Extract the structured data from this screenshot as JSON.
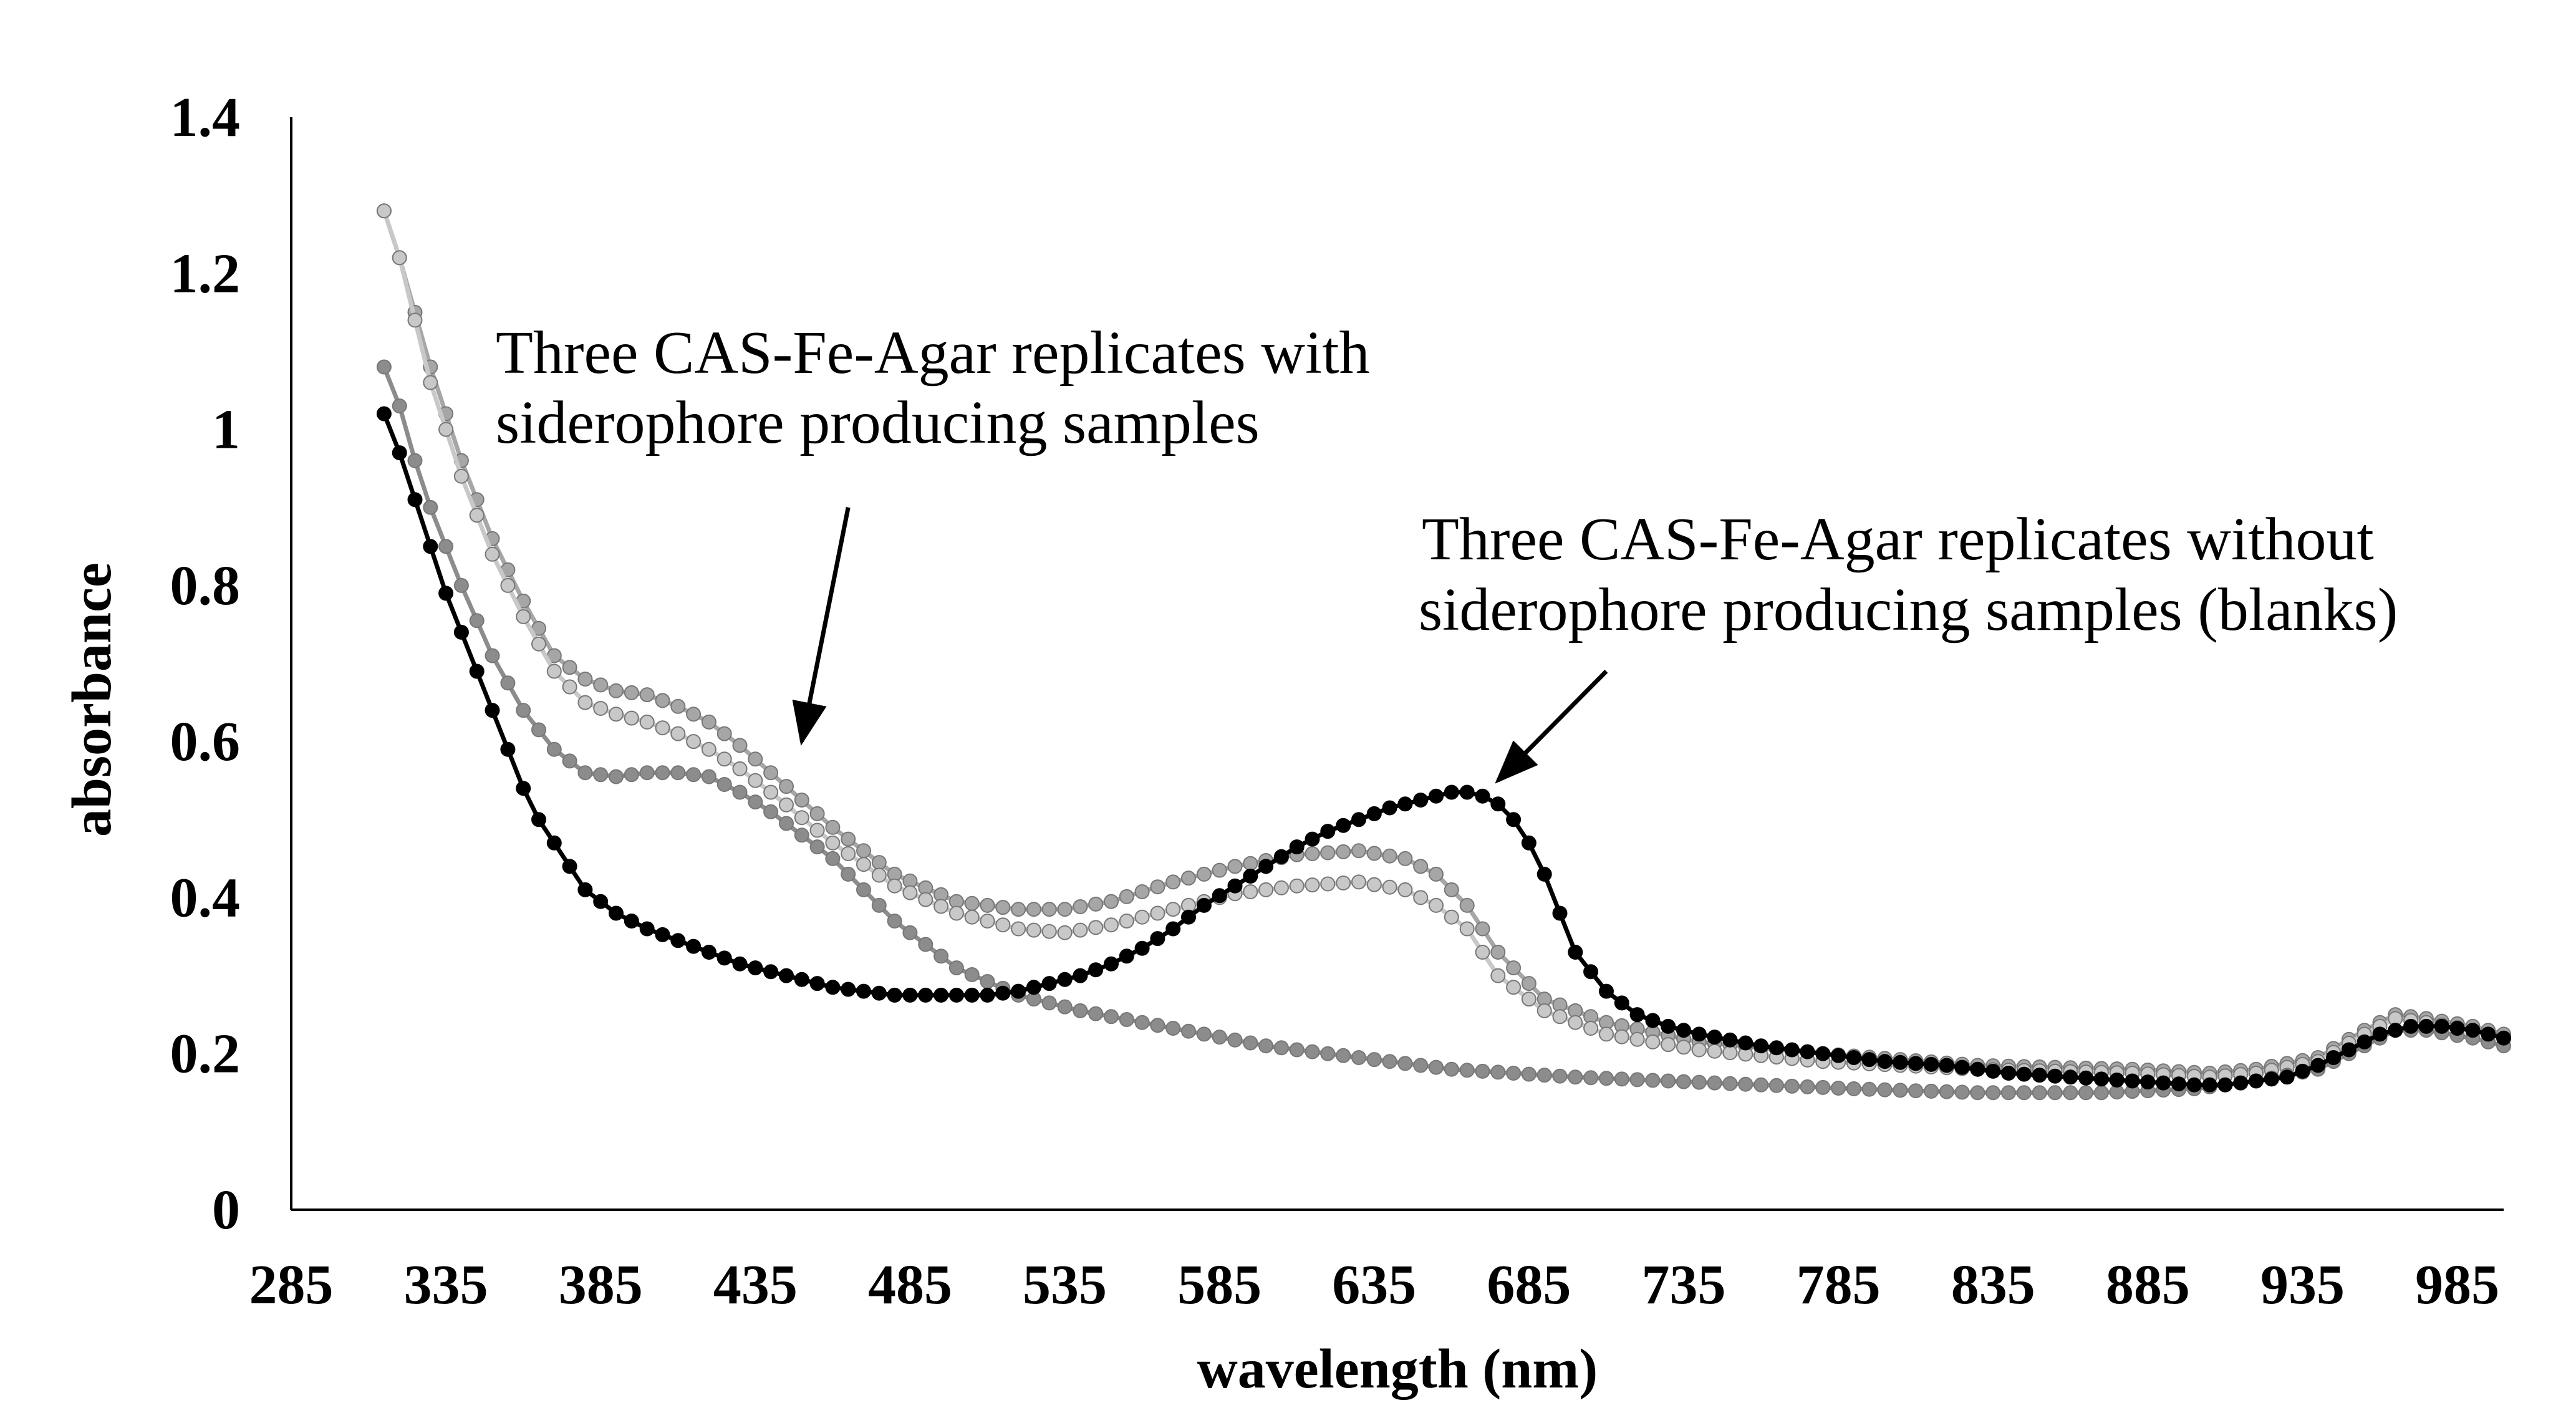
{
  "chart_data": {
    "type": "line",
    "xlabel": "wavelength (nm)",
    "ylabel": "absorbance",
    "xlim": [
      285,
      1000
    ],
    "ylim": [
      0,
      1.4
    ],
    "xticks": [
      285,
      335,
      385,
      435,
      485,
      535,
      585,
      635,
      685,
      735,
      785,
      835,
      885,
      935,
      985
    ],
    "yticks": [
      {
        "value": 0,
        "label": "0"
      },
      {
        "value": 0.2,
        "label": "0.2"
      },
      {
        "value": 0.4,
        "label": "0.4"
      },
      {
        "value": 0.6,
        "label": "0.6"
      },
      {
        "value": 0.8,
        "label": "0.8"
      },
      {
        "value": 1.0,
        "label": "1"
      },
      {
        "value": 1.2,
        "label": "1.2"
      },
      {
        "value": 1.4,
        "label": "1.4"
      }
    ],
    "grid": false,
    "marker_step_nm": 5,
    "annotations": [
      {
        "text": [
          "Three CAS-Fe-Agar replicates with",
          "siderophore producing samples"
        ],
        "arrow_from": [
          465,
          0.9
        ],
        "arrow_to": [
          450,
          0.6
        ]
      },
      {
        "text": [
          "Three CAS-Fe-Agar replicates without",
          "siderophore producing samples (blanks)"
        ],
        "arrow_from": [
          710,
          0.69
        ],
        "arrow_to": [
          675,
          0.55
        ]
      }
    ],
    "series": [
      {
        "color": "#a6a6a6",
        "x": [
          315,
          320,
          325,
          330,
          340,
          350,
          360,
          370,
          380,
          390,
          400,
          410,
          420,
          430,
          440,
          460,
          480,
          500,
          520,
          535,
          550,
          570,
          590,
          610,
          630,
          645,
          655,
          665,
          675,
          690,
          710,
          740,
          780,
          830,
          880,
          905,
          920,
          940,
          955,
          965,
          975,
          990,
          1000
        ],
        "values": [
          1.28,
          1.22,
          1.15,
          1.08,
          0.96,
          0.86,
          0.78,
          0.71,
          0.68,
          0.665,
          0.66,
          0.645,
          0.625,
          0.595,
          0.56,
          0.49,
          0.43,
          0.395,
          0.385,
          0.385,
          0.395,
          0.42,
          0.44,
          0.455,
          0.46,
          0.45,
          0.43,
          0.39,
          0.33,
          0.27,
          0.24,
          0.215,
          0.2,
          0.185,
          0.18,
          0.175,
          0.18,
          0.195,
          0.23,
          0.25,
          0.245,
          0.235,
          0.225
        ]
      },
      {
        "color": "#c8c8c8",
        "x": [
          315,
          320,
          325,
          330,
          340,
          350,
          360,
          370,
          380,
          390,
          400,
          410,
          420,
          430,
          440,
          460,
          480,
          500,
          520,
          535,
          550,
          570,
          590,
          610,
          630,
          645,
          655,
          665,
          675,
          690,
          710,
          740,
          780,
          830,
          880,
          905,
          920,
          940,
          955,
          965,
          975,
          990,
          1000
        ],
        "values": [
          1.28,
          1.22,
          1.14,
          1.06,
          0.94,
          0.84,
          0.76,
          0.69,
          0.65,
          0.635,
          0.625,
          0.61,
          0.59,
          0.565,
          0.535,
          0.47,
          0.415,
          0.38,
          0.36,
          0.355,
          0.365,
          0.385,
          0.405,
          0.415,
          0.42,
          0.41,
          0.39,
          0.36,
          0.3,
          0.255,
          0.225,
          0.205,
          0.19,
          0.18,
          0.175,
          0.17,
          0.175,
          0.19,
          0.225,
          0.245,
          0.24,
          0.23,
          0.22
        ]
      },
      {
        "color": "#8c8c8c",
        "x": [
          315,
          320,
          325,
          330,
          340,
          350,
          360,
          370,
          380,
          390,
          400,
          410,
          420,
          430,
          440,
          460,
          480,
          500,
          520,
          540,
          560,
          580,
          600,
          620,
          640,
          660,
          680,
          700,
          730,
          760,
          790,
          830,
          870,
          900,
          920,
          940,
          955,
          965,
          975,
          990,
          1000
        ],
        "values": [
          1.08,
          1.03,
          0.96,
          0.9,
          0.8,
          0.71,
          0.64,
          0.59,
          0.56,
          0.555,
          0.56,
          0.56,
          0.555,
          0.535,
          0.51,
          0.45,
          0.37,
          0.31,
          0.275,
          0.255,
          0.24,
          0.225,
          0.21,
          0.2,
          0.19,
          0.18,
          0.175,
          0.17,
          0.165,
          0.16,
          0.155,
          0.15,
          0.15,
          0.155,
          0.165,
          0.18,
          0.21,
          0.23,
          0.23,
          0.22,
          0.21
        ]
      },
      {
        "color": "#000000",
        "x": [
          315,
          320,
          325,
          330,
          335,
          340,
          345,
          350,
          355,
          360,
          365,
          370,
          375,
          380,
          390,
          400,
          410,
          420,
          430,
          440,
          450,
          460,
          470,
          480,
          490,
          500,
          510,
          520,
          530,
          540,
          550,
          560,
          570,
          580,
          590,
          600,
          610,
          620,
          630,
          640,
          650,
          660,
          665,
          670,
          675,
          680,
          685,
          690,
          695,
          700,
          710,
          720,
          730,
          740,
          760,
          780,
          800,
          820,
          840,
          860,
          880,
          900,
          910,
          920,
          930,
          940,
          950,
          960,
          970,
          980,
          990,
          1000
        ],
        "values": [
          1.02,
          0.97,
          0.91,
          0.85,
          0.79,
          0.74,
          0.69,
          0.64,
          0.59,
          0.54,
          0.5,
          0.47,
          0.44,
          0.41,
          0.38,
          0.36,
          0.345,
          0.33,
          0.315,
          0.305,
          0.295,
          0.285,
          0.28,
          0.275,
          0.275,
          0.275,
          0.275,
          0.28,
          0.29,
          0.3,
          0.315,
          0.335,
          0.36,
          0.39,
          0.415,
          0.44,
          0.465,
          0.485,
          0.5,
          0.515,
          0.525,
          0.535,
          0.535,
          0.53,
          0.52,
          0.5,
          0.47,
          0.43,
          0.38,
          0.33,
          0.28,
          0.25,
          0.235,
          0.225,
          0.21,
          0.2,
          0.19,
          0.185,
          0.175,
          0.17,
          0.165,
          0.16,
          0.16,
          0.165,
          0.17,
          0.185,
          0.205,
          0.225,
          0.235,
          0.235,
          0.23,
          0.22
        ]
      }
    ]
  }
}
